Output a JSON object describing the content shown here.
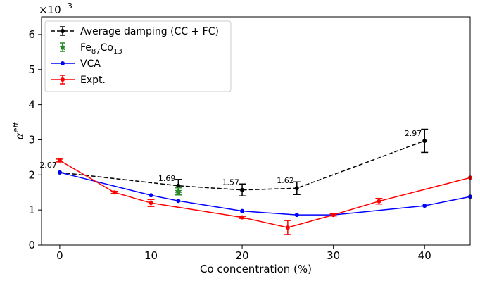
{
  "chart_data": {
    "type": "line",
    "xlabel": "Co concentration (%)",
    "ylabel": "α",
    "ylabel_sup": "eff",
    "y_scale_label": "×10",
    "y_scale_exp": "−3",
    "xlim": [
      -2,
      45
    ],
    "ylim": [
      0,
      6.5
    ],
    "xticks": [
      0,
      10,
      20,
      30,
      40
    ],
    "yticks": [
      0,
      1,
      2,
      3,
      4,
      5,
      6
    ],
    "grid": false,
    "legend_position": "top-left",
    "series": [
      {
        "name": "Average damping (CC + FC)",
        "color": "#000000",
        "style": "dashed",
        "marker": "dot",
        "x": [
          0,
          13,
          20,
          26,
          40
        ],
        "y": [
          2.07,
          1.69,
          1.57,
          1.62,
          2.97
        ],
        "err": [
          0.0,
          0.18,
          0.17,
          0.18,
          0.33
        ]
      },
      {
        "name": "Fe",
        "name_sub1": "87",
        "name_mid": "Co",
        "name_sub2": "13",
        "color": "#228b22",
        "style": "none",
        "marker": "star",
        "x": [
          13
        ],
        "y": [
          1.53
        ],
        "err": [
          0.1
        ]
      },
      {
        "name": "VCA",
        "color": "#0000ff",
        "style": "solid",
        "marker": "dot",
        "x": [
          0,
          10,
          13,
          20,
          26,
          30,
          40,
          45
        ],
        "y": [
          2.07,
          1.42,
          1.26,
          0.97,
          0.86,
          0.86,
          1.12,
          1.38
        ],
        "err": []
      },
      {
        "name": "Expt.",
        "color": "#ff0000",
        "style": "solid",
        "marker": "dot",
        "x": [
          0,
          6,
          10,
          20,
          25,
          30,
          35,
          45
        ],
        "y": [
          2.41,
          1.5,
          1.2,
          0.79,
          0.5,
          0.86,
          1.25,
          1.92
        ],
        "err": [
          0.04,
          0.03,
          0.1,
          0.03,
          0.2,
          0.03,
          0.08,
          0.0
        ]
      }
    ],
    "annotations": [
      {
        "text": "2.07",
        "x": 0,
        "y": 2.07
      },
      {
        "text": "1.69",
        "x": 13,
        "y": 1.69
      },
      {
        "text": "1.57",
        "x": 20,
        "y": 1.57
      },
      {
        "text": "1.62",
        "x": 26,
        "y": 1.62
      },
      {
        "text": "2.97",
        "x": 40,
        "y": 2.97
      }
    ]
  }
}
